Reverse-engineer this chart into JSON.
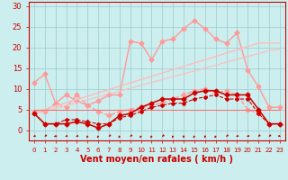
{
  "x": [
    0,
    1,
    2,
    3,
    4,
    5,
    6,
    7,
    8,
    9,
    10,
    11,
    12,
    13,
    14,
    15,
    16,
    17,
    18,
    19,
    20,
    21,
    22,
    23
  ],
  "background_color": "#cceeee",
  "grid_color": "#99cccc",
  "xlabel": "Vent moyen/en rafales ( km/h )",
  "xlabel_color": "#cc0000",
  "xlabel_fontsize": 7,
  "yticks": [
    0,
    5,
    10,
    15,
    20,
    25,
    30
  ],
  "ylim": [
    -2.5,
    31
  ],
  "xlim": [
    -0.5,
    23.5
  ],
  "series": [
    {
      "name": "pink_jagged_top",
      "y": [
        11.5,
        13.5,
        6.5,
        8.5,
        7.0,
        6.0,
        7.0,
        8.5,
        8.5,
        21.5,
        21.0,
        17.0,
        21.5,
        22.0,
        24.5,
        26.5,
        24.5,
        22.0,
        21.0,
        23.5,
        14.5,
        10.5,
        5.5,
        5.5
      ],
      "color": "#ff9999",
      "linewidth": 1.0,
      "marker": "D",
      "markersize": 2.5,
      "linestyle": "-"
    },
    {
      "name": "pink_jagged_mid",
      "y": [
        4.5,
        4.5,
        6.5,
        5.5,
        8.5,
        6.0,
        4.5,
        3.5,
        4.5,
        5.0,
        5.5,
        6.0,
        6.5,
        7.5,
        8.5,
        9.5,
        10.0,
        9.0,
        9.5,
        8.5,
        5.0,
        4.0,
        1.5,
        1.5
      ],
      "color": "#ff9999",
      "linewidth": 1.0,
      "marker": "D",
      "markersize": 2.5,
      "linestyle": "--"
    },
    {
      "name": "linear_upper",
      "y": [
        4.2,
        5.0,
        5.8,
        6.6,
        7.4,
        8.2,
        9.0,
        9.8,
        10.6,
        11.4,
        12.2,
        13.0,
        13.8,
        14.6,
        15.4,
        16.2,
        17.0,
        17.8,
        18.6,
        19.4,
        20.2,
        21.0,
        21.0,
        21.0
      ],
      "color": "#ffbbbb",
      "linewidth": 1.0,
      "marker": null,
      "linestyle": "-"
    },
    {
      "name": "linear_lower",
      "y": [
        3.8,
        4.5,
        5.2,
        5.9,
        6.6,
        7.3,
        8.0,
        8.7,
        9.4,
        10.1,
        10.8,
        11.5,
        12.2,
        12.9,
        13.6,
        14.3,
        15.0,
        15.7,
        16.4,
        17.1,
        17.8,
        18.5,
        19.2,
        19.5
      ],
      "color": "#ffbbbb",
      "linewidth": 0.8,
      "marker": null,
      "linestyle": "-"
    },
    {
      "name": "red_flat_upper",
      "y": [
        5.0,
        5.0,
        5.0,
        5.0,
        5.0,
        5.0,
        5.0,
        5.0,
        5.0,
        5.0,
        5.0,
        5.0,
        5.0,
        5.0,
        5.0,
        5.0,
        5.0,
        5.0,
        5.0,
        5.0,
        5.0,
        5.0,
        5.0,
        5.0
      ],
      "color": "#ff6666",
      "linewidth": 0.7,
      "marker": null,
      "linestyle": "-"
    },
    {
      "name": "dark_red_main",
      "y": [
        4.0,
        1.5,
        1.5,
        1.5,
        2.0,
        1.5,
        0.5,
        1.5,
        3.5,
        4.0,
        5.5,
        6.5,
        7.5,
        7.5,
        7.5,
        9.0,
        9.5,
        9.5,
        8.5,
        8.5,
        8.5,
        5.0,
        1.5,
        1.5
      ],
      "color": "#cc0000",
      "linewidth": 1.1,
      "marker": "D",
      "markersize": 2.5,
      "linestyle": "-"
    },
    {
      "name": "dark_red_lower",
      "y": [
        4.0,
        1.5,
        1.5,
        2.5,
        2.5,
        2.0,
        1.5,
        1.5,
        3.0,
        3.5,
        4.5,
        5.5,
        6.0,
        6.5,
        6.5,
        7.5,
        8.0,
        8.5,
        7.5,
        7.5,
        7.5,
        4.0,
        1.5,
        1.5
      ],
      "color": "#cc0000",
      "linewidth": 0.8,
      "marker": "D",
      "markersize": 2.0,
      "linestyle": "--"
    }
  ],
  "wind_directions": [
    225,
    210,
    240,
    225,
    225,
    195,
    195,
    210,
    195,
    210,
    195,
    195,
    210,
    195,
    180,
    195,
    180,
    195,
    210,
    225,
    225,
    210,
    210,
    135
  ],
  "arrow_color": "#cc0000",
  "tick_color": "#cc0000",
  "ytick_fontsize": 6,
  "xtick_fontsize": 5,
  "xtick_labels": [
    "0",
    "1",
    "2",
    "3",
    "4",
    "5",
    "6",
    "7",
    "8",
    "9",
    "10",
    "11",
    "12",
    "13",
    "14",
    "15",
    "16",
    "17",
    "18",
    "19",
    "20",
    "21",
    "22",
    "23"
  ]
}
